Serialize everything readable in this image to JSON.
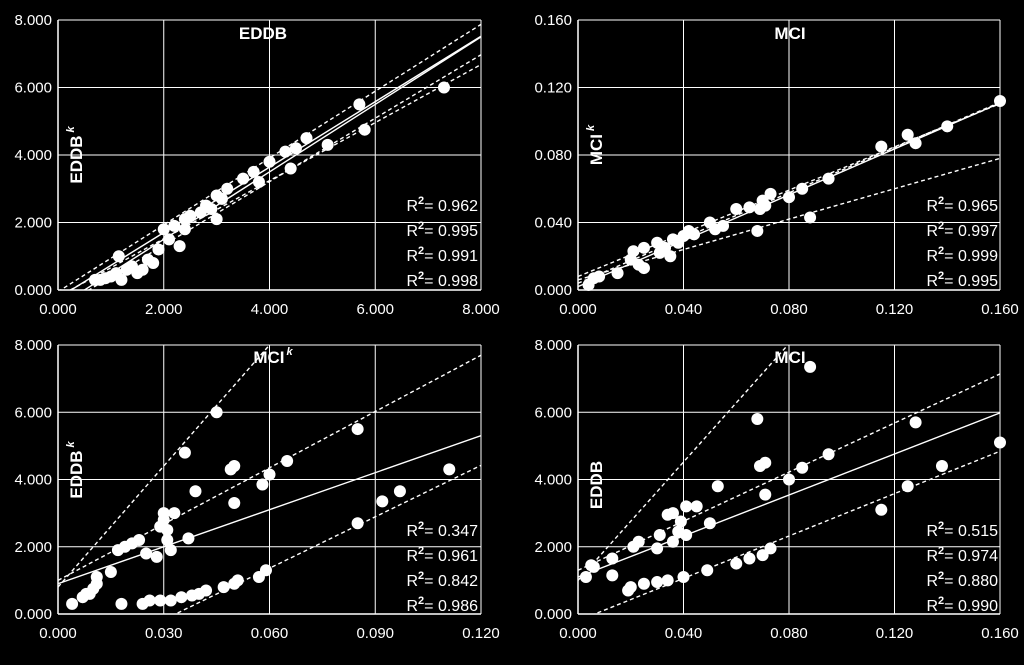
{
  "chart_data": [
    {
      "type": "scatter",
      "title": "EDDB",
      "ylabel": "EDDB",
      "ylabel_sup": "k",
      "xlim": [
        0,
        8
      ],
      "ylim": [
        0,
        8
      ],
      "x_ticks": [
        0,
        2,
        4,
        6,
        8
      ],
      "y_ticks": [
        0,
        2,
        4,
        6,
        8
      ],
      "x_tick_labels": [
        "0.000",
        "2.000",
        "4.000",
        "6.000",
        "8.000"
      ],
      "y_tick_labels": [
        "0.000",
        "2.000",
        "4.000",
        "6.000",
        "8.000"
      ],
      "grid": true,
      "points": [
        [
          0.7,
          0.3
        ],
        [
          0.8,
          0.3
        ],
        [
          0.9,
          0.35
        ],
        [
          1.0,
          0.4
        ],
        [
          1.1,
          0.5
        ],
        [
          1.15,
          1.0
        ],
        [
          1.2,
          0.3
        ],
        [
          1.3,
          0.6
        ],
        [
          1.4,
          0.7
        ],
        [
          1.5,
          0.5
        ],
        [
          1.6,
          0.6
        ],
        [
          1.7,
          0.9
        ],
        [
          1.8,
          0.8
        ],
        [
          1.9,
          1.2
        ],
        [
          2.0,
          1.8
        ],
        [
          2.1,
          1.5
        ],
        [
          2.2,
          1.9
        ],
        [
          2.3,
          1.3
        ],
        [
          2.4,
          1.8
        ],
        [
          2.4,
          2.1
        ],
        [
          2.5,
          2.2
        ],
        [
          2.7,
          2.3
        ],
        [
          2.8,
          2.5
        ],
        [
          2.9,
          2.4
        ],
        [
          3.0,
          2.1
        ],
        [
          3.0,
          2.8
        ],
        [
          3.1,
          2.7
        ],
        [
          3.2,
          3.0
        ],
        [
          3.5,
          3.3
        ],
        [
          3.7,
          3.5
        ],
        [
          3.8,
          3.2
        ],
        [
          4.0,
          3.8
        ],
        [
          4.3,
          4.1
        ],
        [
          4.4,
          3.6
        ],
        [
          4.5,
          4.2
        ],
        [
          4.7,
          4.5
        ],
        [
          5.1,
          4.3
        ],
        [
          5.7,
          5.5
        ],
        [
          5.8,
          4.75
        ],
        [
          7.3,
          6.0
        ]
      ],
      "lines": [
        {
          "style": "solid",
          "intercept": -0.24,
          "slope": 0.97
        },
        {
          "style": "solid",
          "intercept": -0.5,
          "slope": 1.0
        },
        {
          "style": "dashed",
          "intercept": -0.05,
          "slope": 0.99
        },
        {
          "style": "dashed",
          "intercept": -0.55,
          "slope": 0.94
        },
        {
          "style": "dashed",
          "intercept": -0.2,
          "slope": 0.86
        }
      ],
      "r2_values": [
        "0.962",
        "0.995",
        "0.991",
        "0.998"
      ]
    },
    {
      "type": "scatter",
      "title": "MCI",
      "ylabel": "MCI",
      "ylabel_sup": "k",
      "xlim": [
        0,
        0.16
      ],
      "ylim": [
        0,
        0.16
      ],
      "x_ticks": [
        0,
        0.04,
        0.08,
        0.12,
        0.16
      ],
      "y_ticks": [
        0,
        0.04,
        0.08,
        0.12,
        0.16
      ],
      "x_tick_labels": [
        "0.000",
        "0.040",
        "0.080",
        "0.120",
        "0.160"
      ],
      "y_tick_labels": [
        "0.000",
        "0.040",
        "0.080",
        "0.120",
        "0.160"
      ],
      "grid": true,
      "points": [
        [
          0.004,
          0.003
        ],
        [
          0.006,
          0.007
        ],
        [
          0.008,
          0.008
        ],
        [
          0.015,
          0.01
        ],
        [
          0.02,
          0.018
        ],
        [
          0.021,
          0.023
        ],
        [
          0.023,
          0.015
        ],
        [
          0.025,
          0.025
        ],
        [
          0.025,
          0.013
        ],
        [
          0.03,
          0.028
        ],
        [
          0.031,
          0.022
        ],
        [
          0.033,
          0.025
        ],
        [
          0.035,
          0.02
        ],
        [
          0.036,
          0.03
        ],
        [
          0.038,
          0.028
        ],
        [
          0.04,
          0.032
        ],
        [
          0.042,
          0.035
        ],
        [
          0.044,
          0.033
        ],
        [
          0.05,
          0.04
        ],
        [
          0.052,
          0.036
        ],
        [
          0.055,
          0.038
        ],
        [
          0.06,
          0.048
        ],
        [
          0.065,
          0.049
        ],
        [
          0.068,
          0.035
        ],
        [
          0.069,
          0.048
        ],
        [
          0.07,
          0.053
        ],
        [
          0.071,
          0.05
        ],
        [
          0.073,
          0.057
        ],
        [
          0.08,
          0.055
        ],
        [
          0.085,
          0.06
        ],
        [
          0.088,
          0.043
        ],
        [
          0.095,
          0.066
        ],
        [
          0.115,
          0.085
        ],
        [
          0.125,
          0.092
        ],
        [
          0.128,
          0.087
        ],
        [
          0.14,
          0.097
        ],
        [
          0.16,
          0.112
        ]
      ],
      "lines": [
        {
          "style": "solid",
          "intercept": 0.002,
          "slope": 0.68
        },
        {
          "style": "dashed",
          "intercept": 0.004,
          "slope": 0.67
        },
        {
          "style": "dashed",
          "intercept": 0.008,
          "slope": 0.64
        },
        {
          "style": "dashed",
          "intercept": 0.006,
          "slope": 0.45
        }
      ],
      "r2_values": [
        "0.965",
        "0.997",
        "0.999",
        "0.995"
      ]
    },
    {
      "type": "scatter",
      "title": "MCI",
      "title_sup": "k",
      "ylabel": "EDDB",
      "ylabel_sup": "k",
      "xlim": [
        0,
        0.12
      ],
      "ylim": [
        0,
        8
      ],
      "x_ticks": [
        0,
        0.03,
        0.06,
        0.09,
        0.12
      ],
      "y_ticks": [
        0,
        2,
        4,
        6,
        8
      ],
      "x_tick_labels": [
        "0.000",
        "0.030",
        "0.060",
        "0.090",
        "0.120"
      ],
      "y_tick_labels": [
        "0.000",
        "2.000",
        "4.000",
        "6.000",
        "8.000"
      ],
      "grid": true,
      "points": [
        [
          0.004,
          0.3
        ],
        [
          0.007,
          0.5
        ],
        [
          0.008,
          0.6
        ],
        [
          0.009,
          0.6
        ],
        [
          0.01,
          0.75
        ],
        [
          0.011,
          1.1
        ],
        [
          0.011,
          0.9
        ],
        [
          0.015,
          1.25
        ],
        [
          0.017,
          1.9
        ],
        [
          0.018,
          0.3
        ],
        [
          0.019,
          2.0
        ],
        [
          0.021,
          2.1
        ],
        [
          0.023,
          2.2
        ],
        [
          0.024,
          0.3
        ],
        [
          0.025,
          1.8
        ],
        [
          0.026,
          0.4
        ],
        [
          0.028,
          1.7
        ],
        [
          0.029,
          0.4
        ],
        [
          0.029,
          2.6
        ],
        [
          0.03,
          2.8
        ],
        [
          0.03,
          3.0
        ],
        [
          0.031,
          2.5
        ],
        [
          0.031,
          2.2
        ],
        [
          0.032,
          0.4
        ],
        [
          0.032,
          1.9
        ],
        [
          0.033,
          3.0
        ],
        [
          0.035,
          0.5
        ],
        [
          0.036,
          4.8
        ],
        [
          0.037,
          2.25
        ],
        [
          0.038,
          0.55
        ],
        [
          0.039,
          3.65
        ],
        [
          0.04,
          0.6
        ],
        [
          0.042,
          0.7
        ],
        [
          0.045,
          6.0
        ],
        [
          0.047,
          0.8
        ],
        [
          0.049,
          4.3
        ],
        [
          0.05,
          0.9
        ],
        [
          0.05,
          4.4
        ],
        [
          0.051,
          1.0
        ],
        [
          0.05,
          3.3
        ],
        [
          0.057,
          1.1
        ],
        [
          0.058,
          3.85
        ],
        [
          0.059,
          1.3
        ],
        [
          0.06,
          4.15
        ],
        [
          0.065,
          4.55
        ],
        [
          0.085,
          2.7
        ],
        [
          0.085,
          5.5
        ],
        [
          0.092,
          3.35
        ],
        [
          0.097,
          3.65
        ],
        [
          0.111,
          4.3
        ]
      ],
      "lines": [
        {
          "style": "solid",
          "intercept": 0.9,
          "slope": 36.7
        },
        {
          "style": "dashed",
          "intercept": 0.8,
          "slope": 120
        },
        {
          "style": "dashed",
          "intercept": 1.0,
          "slope": 55.8
        },
        {
          "style": "dashed",
          "intercept": -1.7,
          "slope": 51
        }
      ],
      "r2_values": [
        "0.347",
        "0.961",
        "0.842",
        "0.986"
      ]
    },
    {
      "type": "scatter",
      "title": "MCI",
      "ylabel": "EDDB",
      "xlim": [
        0,
        0.16
      ],
      "ylim": [
        0,
        8
      ],
      "x_ticks": [
        0,
        0.04,
        0.08,
        0.12,
        0.16
      ],
      "y_ticks": [
        0,
        2,
        4,
        6,
        8
      ],
      "x_tick_labels": [
        "0.000",
        "0.040",
        "0.080",
        "0.120",
        "0.160"
      ],
      "y_tick_labels": [
        "0.000",
        "2.000",
        "4.000",
        "6.000",
        "8.000"
      ],
      "grid": true,
      "points": [
        [
          0.003,
          1.1
        ],
        [
          0.005,
          1.45
        ],
        [
          0.006,
          1.4
        ],
        [
          0.013,
          1.15
        ],
        [
          0.013,
          1.65
        ],
        [
          0.019,
          0.7
        ],
        [
          0.02,
          0.8
        ],
        [
          0.021,
          2.0
        ],
        [
          0.023,
          2.15
        ],
        [
          0.025,
          0.9
        ],
        [
          0.03,
          0.95
        ],
        [
          0.03,
          1.95
        ],
        [
          0.031,
          2.35
        ],
        [
          0.034,
          1.0
        ],
        [
          0.034,
          2.95
        ],
        [
          0.036,
          2.15
        ],
        [
          0.036,
          3.0
        ],
        [
          0.038,
          2.45
        ],
        [
          0.039,
          2.75
        ],
        [
          0.04,
          1.1
        ],
        [
          0.041,
          2.35
        ],
        [
          0.041,
          3.2
        ],
        [
          0.045,
          3.2
        ],
        [
          0.049,
          1.3
        ],
        [
          0.05,
          2.7
        ],
        [
          0.053,
          3.8
        ],
        [
          0.06,
          1.5
        ],
        [
          0.065,
          1.65
        ],
        [
          0.068,
          5.8
        ],
        [
          0.069,
          4.4
        ],
        [
          0.07,
          1.75
        ],
        [
          0.071,
          4.5
        ],
        [
          0.071,
          3.55
        ],
        [
          0.073,
          1.95
        ],
        [
          0.08,
          4.0
        ],
        [
          0.085,
          4.35
        ],
        [
          0.088,
          7.35
        ],
        [
          0.095,
          4.75
        ],
        [
          0.115,
          3.1
        ],
        [
          0.125,
          3.8
        ],
        [
          0.128,
          5.7
        ],
        [
          0.138,
          4.4
        ],
        [
          0.16,
          5.1
        ]
      ],
      "lines": [
        {
          "style": "solid",
          "intercept": 1.1,
          "slope": 30.5
        },
        {
          "style": "dashed",
          "intercept": 1.0,
          "slope": 88
        },
        {
          "style": "dashed",
          "intercept": 1.3,
          "slope": 36.5
        },
        {
          "style": "dashed",
          "intercept": -0.2,
          "slope": 31.5
        }
      ],
      "r2_values": [
        "0.515",
        "0.974",
        "0.880",
        "0.990"
      ]
    }
  ]
}
